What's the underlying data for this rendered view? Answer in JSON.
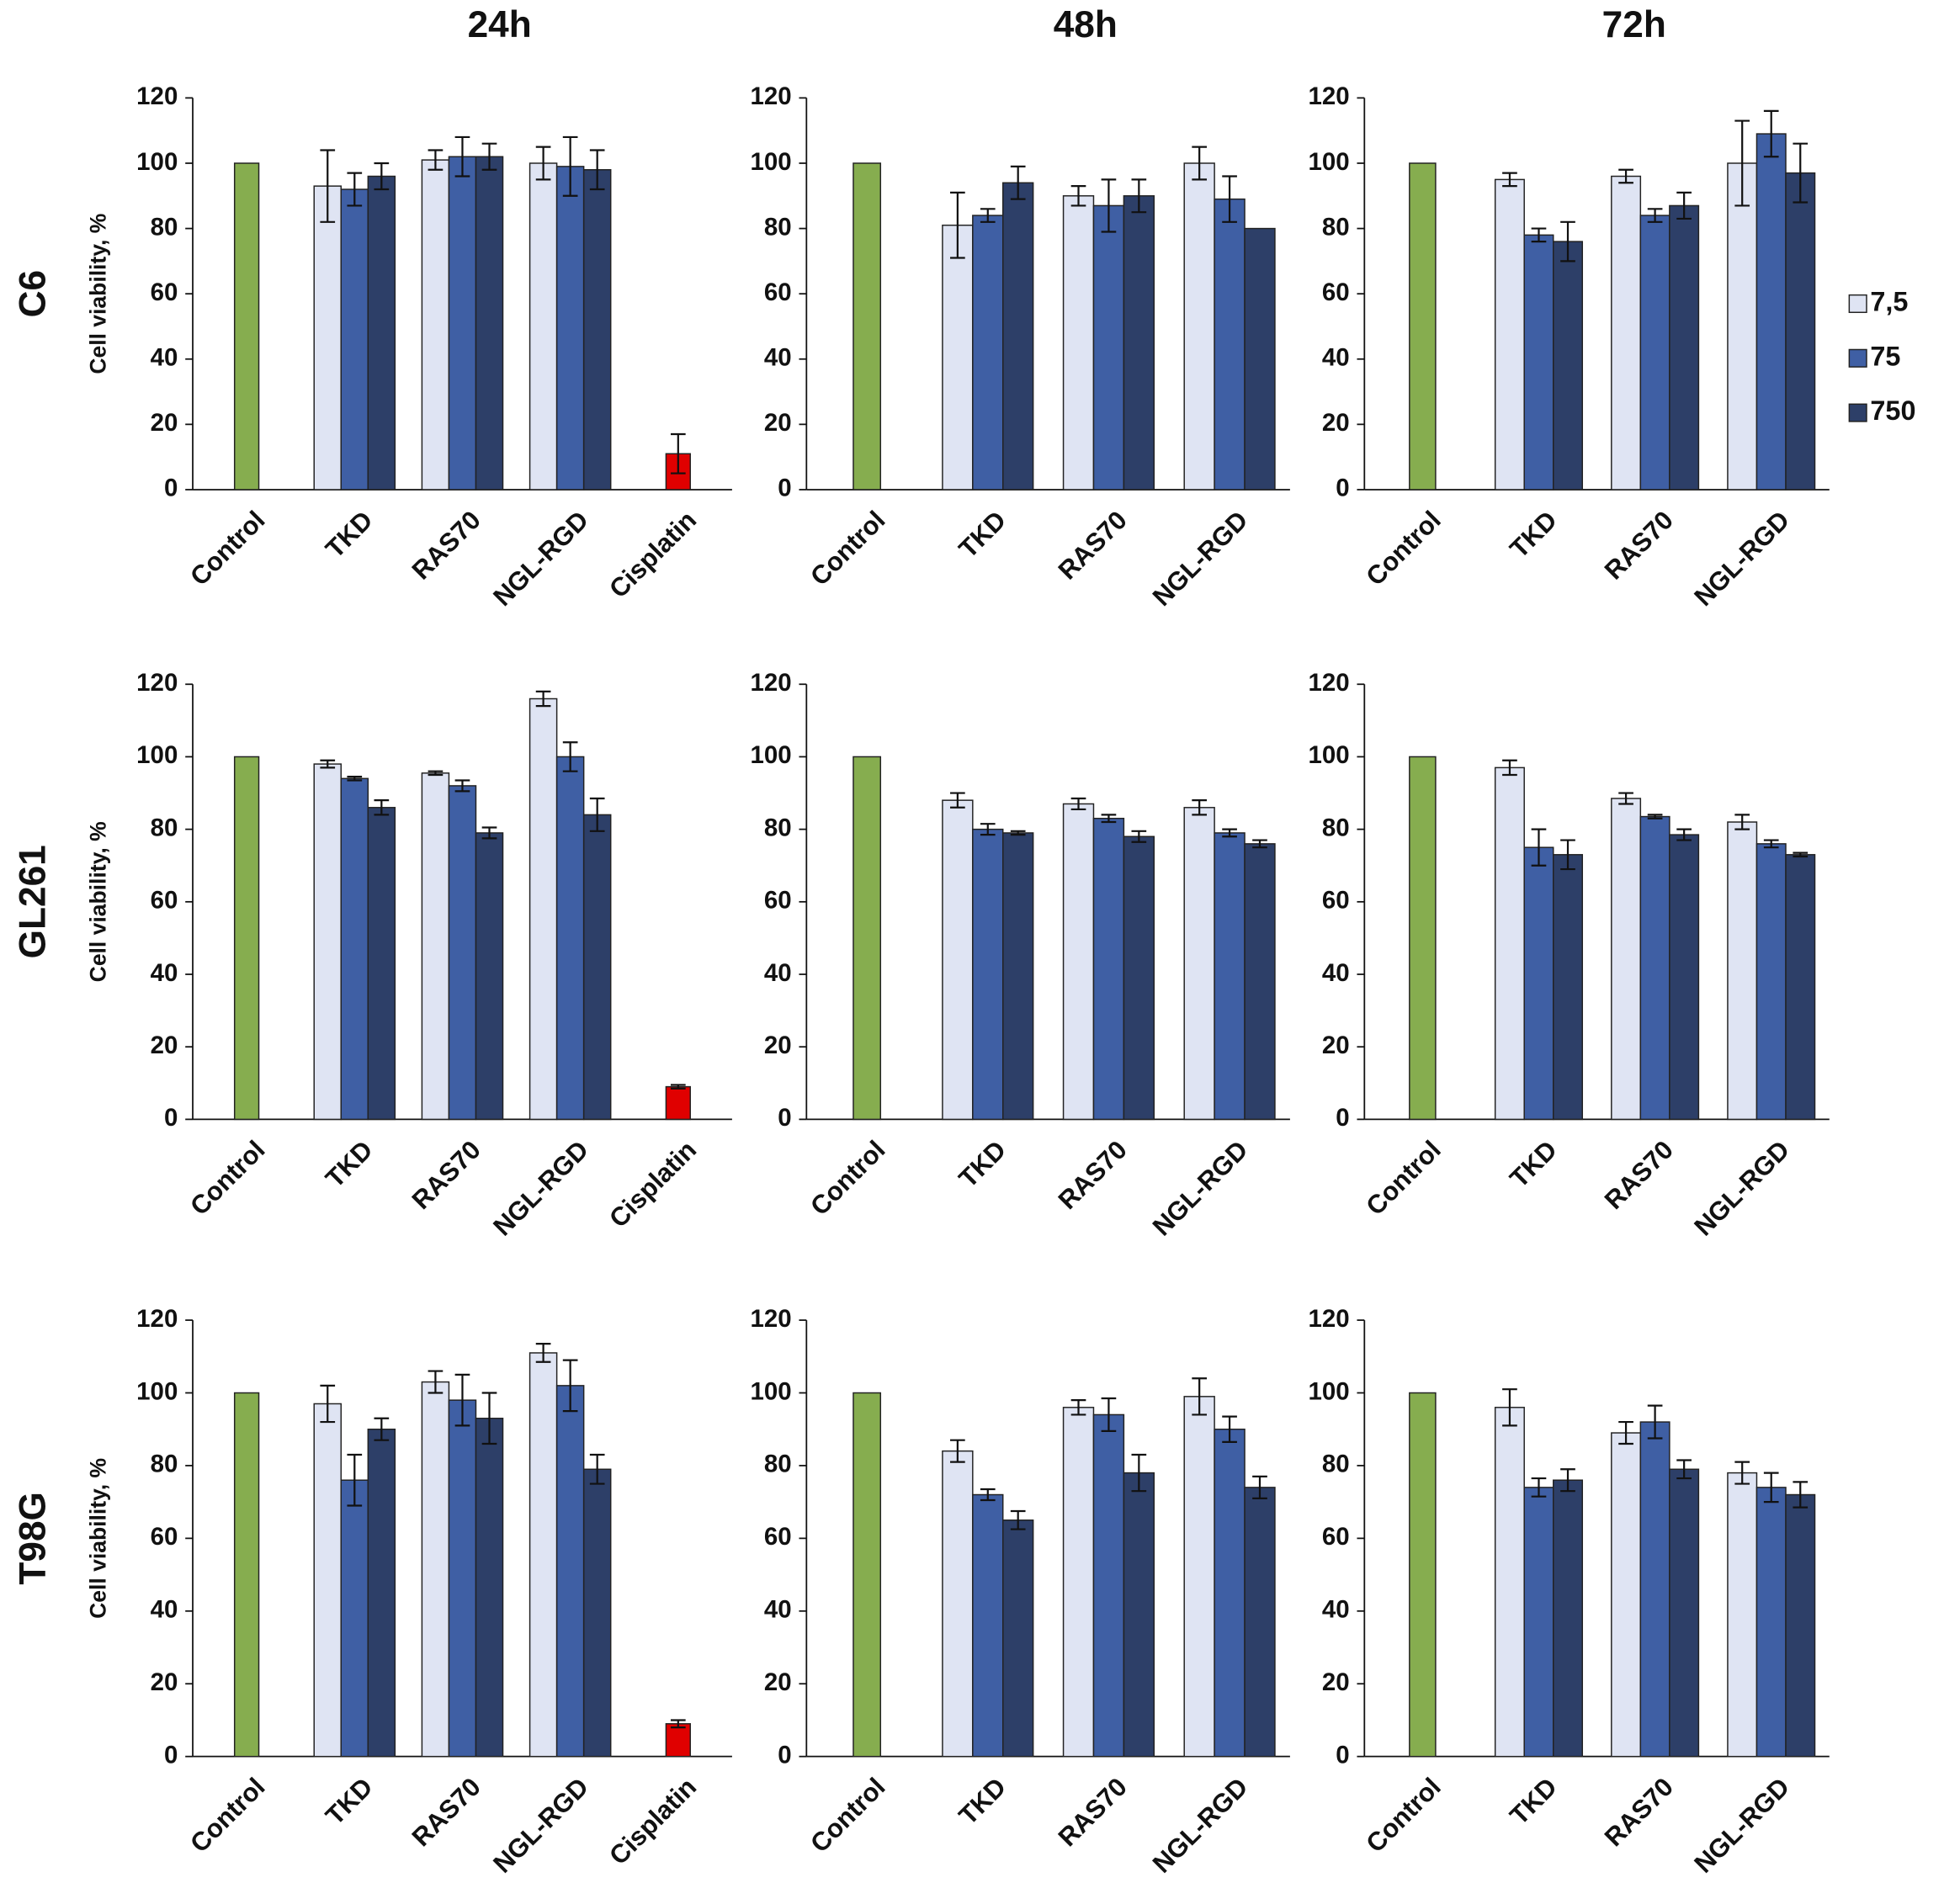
{
  "columns": [
    "24h",
    "48h",
    "72h"
  ],
  "rows": [
    "C6",
    "GL261",
    "T98G"
  ],
  "legend": [
    {
      "name": "7,5",
      "color": "#dfe4f3"
    },
    {
      "name": "75",
      "color": "#3f5fa4"
    },
    {
      "name": "750",
      "color": "#2d3f68"
    }
  ],
  "chart_data": [
    {
      "type": "bar",
      "ylabel": "Cell viability, %",
      "categories": [
        "Control",
        "TKD",
        "RAS70",
        "NGL-RGD",
        "Cisplatin"
      ],
      "ylim": [
        0,
        120
      ],
      "yticks": [
        0,
        20,
        40,
        60,
        80,
        100,
        120
      ],
      "control": {
        "value": 100,
        "color": "#86ad4f"
      },
      "cisplatin": {
        "value": 11,
        "error": 6,
        "color": "#e00000"
      },
      "series": [
        {
          "color": "#dfe4f3",
          "values": [
            null,
            93,
            101,
            100,
            null
          ],
          "errors": [
            null,
            11,
            3,
            5,
            null
          ]
        },
        {
          "color": "#3f5fa4",
          "values": [
            null,
            92,
            102,
            99,
            null
          ],
          "errors": [
            null,
            5,
            6,
            9,
            null
          ]
        },
        {
          "color": "#2d3f68",
          "values": [
            null,
            96,
            102,
            98,
            null
          ],
          "errors": [
            null,
            4,
            4,
            6,
            null
          ]
        }
      ]
    },
    {
      "type": "bar",
      "categories": [
        "Control",
        "TKD",
        "RAS70",
        "NGL-RGD"
      ],
      "ylim": [
        0,
        120
      ],
      "yticks": [
        0,
        20,
        40,
        60,
        80,
        100,
        120
      ],
      "control": {
        "value": 100,
        "color": "#86ad4f"
      },
      "series": [
        {
          "color": "#dfe4f3",
          "values": [
            null,
            81,
            90,
            100
          ],
          "errors": [
            null,
            10,
            3,
            5
          ]
        },
        {
          "color": "#3f5fa4",
          "values": [
            null,
            84,
            87,
            89
          ],
          "errors": [
            null,
            2,
            8,
            7
          ]
        },
        {
          "color": "#2d3f68",
          "values": [
            null,
            94,
            90,
            80
          ],
          "errors": [
            null,
            5,
            5,
            null
          ]
        }
      ]
    },
    {
      "type": "bar",
      "categories": [
        "Control",
        "TKD",
        "RAS70",
        "NGL-RGD"
      ],
      "ylim": [
        0,
        120
      ],
      "yticks": [
        0,
        20,
        40,
        60,
        80,
        100,
        120
      ],
      "control": {
        "value": 100,
        "color": "#86ad4f"
      },
      "series": [
        {
          "color": "#dfe4f3",
          "values": [
            null,
            95,
            96,
            100
          ],
          "errors": [
            null,
            2,
            2,
            13
          ]
        },
        {
          "color": "#3f5fa4",
          "values": [
            null,
            78,
            84,
            109
          ],
          "errors": [
            null,
            2,
            2,
            7
          ]
        },
        {
          "color": "#2d3f68",
          "values": [
            null,
            76,
            87,
            97
          ],
          "errors": [
            null,
            6,
            4,
            9
          ]
        }
      ]
    },
    {
      "type": "bar",
      "ylabel": "Cell viability, %",
      "categories": [
        "Control",
        "TKD",
        "RAS70",
        "NGL-RGD",
        "Cisplatin"
      ],
      "ylim": [
        0,
        120
      ],
      "yticks": [
        0,
        20,
        40,
        60,
        80,
        100,
        120
      ],
      "control": {
        "value": 100,
        "color": "#86ad4f"
      },
      "cisplatin": {
        "value": 9,
        "error": 0.5,
        "color": "#e00000"
      },
      "series": [
        {
          "color": "#dfe4f3",
          "values": [
            null,
            98,
            95.5,
            116,
            null
          ],
          "errors": [
            null,
            1,
            0.5,
            2,
            null
          ]
        },
        {
          "color": "#3f5fa4",
          "values": [
            null,
            94,
            92,
            100,
            null
          ],
          "errors": [
            null,
            0.5,
            1.5,
            4,
            null
          ]
        },
        {
          "color": "#2d3f68",
          "values": [
            null,
            86,
            79,
            84,
            null
          ],
          "errors": [
            null,
            2,
            1.5,
            4.5,
            null
          ]
        }
      ]
    },
    {
      "type": "bar",
      "categories": [
        "Control",
        "TKD",
        "RAS70",
        "NGL-RGD"
      ],
      "ylim": [
        0,
        120
      ],
      "yticks": [
        0,
        20,
        40,
        60,
        80,
        100,
        120
      ],
      "control": {
        "value": 100,
        "color": "#86ad4f"
      },
      "series": [
        {
          "color": "#dfe4f3",
          "values": [
            null,
            88,
            87,
            86
          ],
          "errors": [
            null,
            2,
            1.5,
            2
          ]
        },
        {
          "color": "#3f5fa4",
          "values": [
            null,
            80,
            83,
            79
          ],
          "errors": [
            null,
            1.5,
            1,
            1
          ]
        },
        {
          "color": "#2d3f68",
          "values": [
            null,
            79,
            78,
            76
          ],
          "errors": [
            null,
            0.5,
            1.5,
            1
          ]
        }
      ]
    },
    {
      "type": "bar",
      "categories": [
        "Control",
        "TKD",
        "RAS70",
        "NGL-RGD"
      ],
      "ylim": [
        0,
        120
      ],
      "yticks": [
        0,
        20,
        40,
        60,
        80,
        100,
        120
      ],
      "control": {
        "value": 100,
        "color": "#86ad4f"
      },
      "series": [
        {
          "color": "#dfe4f3",
          "values": [
            null,
            97,
            88.5,
            82
          ],
          "errors": [
            null,
            2,
            1.5,
            2
          ]
        },
        {
          "color": "#3f5fa4",
          "values": [
            null,
            75,
            83.5,
            76
          ],
          "errors": [
            null,
            5,
            0.5,
            1
          ]
        },
        {
          "color": "#2d3f68",
          "values": [
            null,
            73,
            78.5,
            73
          ],
          "errors": [
            null,
            4,
            1.5,
            0.5
          ]
        }
      ]
    },
    {
      "type": "bar",
      "ylabel": "Cell viability, %",
      "categories": [
        "Control",
        "TKD",
        "RAS70",
        "NGL-RGD",
        "Cisplatin"
      ],
      "ylim": [
        0,
        120
      ],
      "yticks": [
        0,
        20,
        40,
        60,
        80,
        100,
        120
      ],
      "control": {
        "value": 100,
        "color": "#86ad4f"
      },
      "cisplatin": {
        "value": 9,
        "error": 1,
        "color": "#e00000"
      },
      "series": [
        {
          "color": "#dfe4f3",
          "values": [
            null,
            97,
            103,
            111,
            null
          ],
          "errors": [
            null,
            5,
            3,
            2.5,
            null
          ]
        },
        {
          "color": "#3f5fa4",
          "values": [
            null,
            76,
            98,
            102,
            null
          ],
          "errors": [
            null,
            7,
            7,
            7,
            null
          ]
        },
        {
          "color": "#2d3f68",
          "values": [
            null,
            90,
            93,
            79,
            null
          ],
          "errors": [
            null,
            3,
            7,
            4,
            null
          ]
        }
      ]
    },
    {
      "type": "bar",
      "categories": [
        "Control",
        "TKD",
        "RAS70",
        "NGL-RGD"
      ],
      "ylim": [
        0,
        120
      ],
      "yticks": [
        0,
        20,
        40,
        60,
        80,
        100,
        120
      ],
      "control": {
        "value": 100,
        "color": "#86ad4f"
      },
      "series": [
        {
          "color": "#dfe4f3",
          "values": [
            null,
            84,
            96,
            99
          ],
          "errors": [
            null,
            3,
            2,
            5
          ]
        },
        {
          "color": "#3f5fa4",
          "values": [
            null,
            72,
            94,
            90
          ],
          "errors": [
            null,
            1.5,
            4.5,
            3.5
          ]
        },
        {
          "color": "#2d3f68",
          "values": [
            null,
            65,
            78,
            74
          ],
          "errors": [
            null,
            2.5,
            5,
            3
          ]
        }
      ]
    },
    {
      "type": "bar",
      "categories": [
        "Control",
        "TKD",
        "RAS70",
        "NGL-RGD"
      ],
      "ylim": [
        0,
        120
      ],
      "yticks": [
        0,
        20,
        40,
        60,
        80,
        100,
        120
      ],
      "control": {
        "value": 100,
        "color": "#86ad4f"
      },
      "series": [
        {
          "color": "#dfe4f3",
          "values": [
            null,
            96,
            89,
            78
          ],
          "errors": [
            null,
            5,
            3,
            3
          ]
        },
        {
          "color": "#3f5fa4",
          "values": [
            null,
            74,
            92,
            74
          ],
          "errors": [
            null,
            2.5,
            4.5,
            4
          ]
        },
        {
          "color": "#2d3f68",
          "values": [
            null,
            76,
            79,
            72
          ],
          "errors": [
            null,
            3,
            2.5,
            3.5
          ]
        }
      ]
    }
  ]
}
